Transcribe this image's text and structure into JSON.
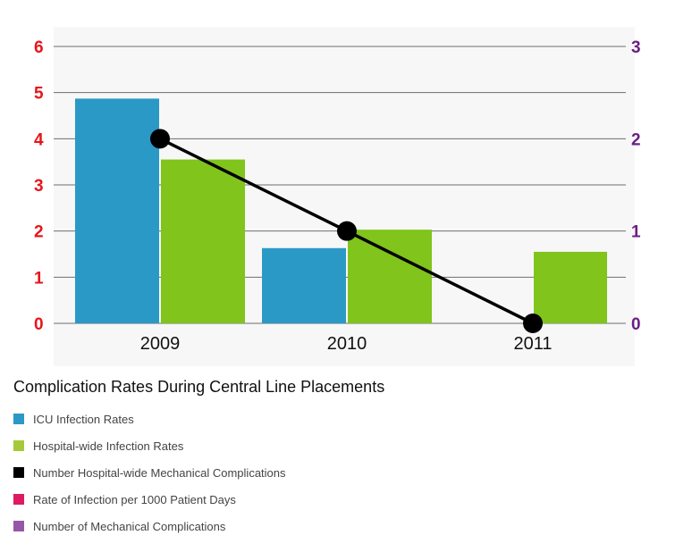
{
  "chart_data": {
    "type": "bar",
    "title": "Complication Rates During Central Line Placements",
    "categories": [
      "2009",
      "2010",
      "2011"
    ],
    "y_left": {
      "ylim": [
        0,
        6
      ],
      "ticks": [
        "0",
        "1",
        "2",
        "3",
        "4",
        "5",
        "6"
      ],
      "color": "#e8141b"
    },
    "y_right": {
      "ylim": [
        0,
        3
      ],
      "ticks": [
        "0",
        "1",
        "2",
        "3"
      ],
      "color": "#6b1f84"
    },
    "grid": true,
    "series": [
      {
        "name": "ICU Infection Rates",
        "kind": "bar",
        "axis": "left",
        "color": "#2b99c6",
        "values": [
          4.87,
          1.63,
          null
        ]
      },
      {
        "name": "Hospital-wide Infection Rates",
        "kind": "bar",
        "axis": "left",
        "color": "#80c41c",
        "values": [
          3.55,
          2.03,
          1.55
        ]
      },
      {
        "name": "Number Hospital-wide Mechanical Complications",
        "kind": "line",
        "axis": "right",
        "color": "#000000",
        "values": [
          2,
          1,
          0
        ]
      }
    ],
    "legend": [
      {
        "label": "ICU Infection Rates",
        "color": "#2b99c6"
      },
      {
        "label": "Hospital-wide Infection Rates",
        "color": "#a6c93a"
      },
      {
        "label": "Number Hospital-wide Mechanical Complications",
        "color": "#000000"
      },
      {
        "label": "Rate of Infection per 1000 Patient Days",
        "color": "#de1a62"
      },
      {
        "label": "Number of Mechanical Complications",
        "color": "#9558a8"
      }
    ]
  }
}
